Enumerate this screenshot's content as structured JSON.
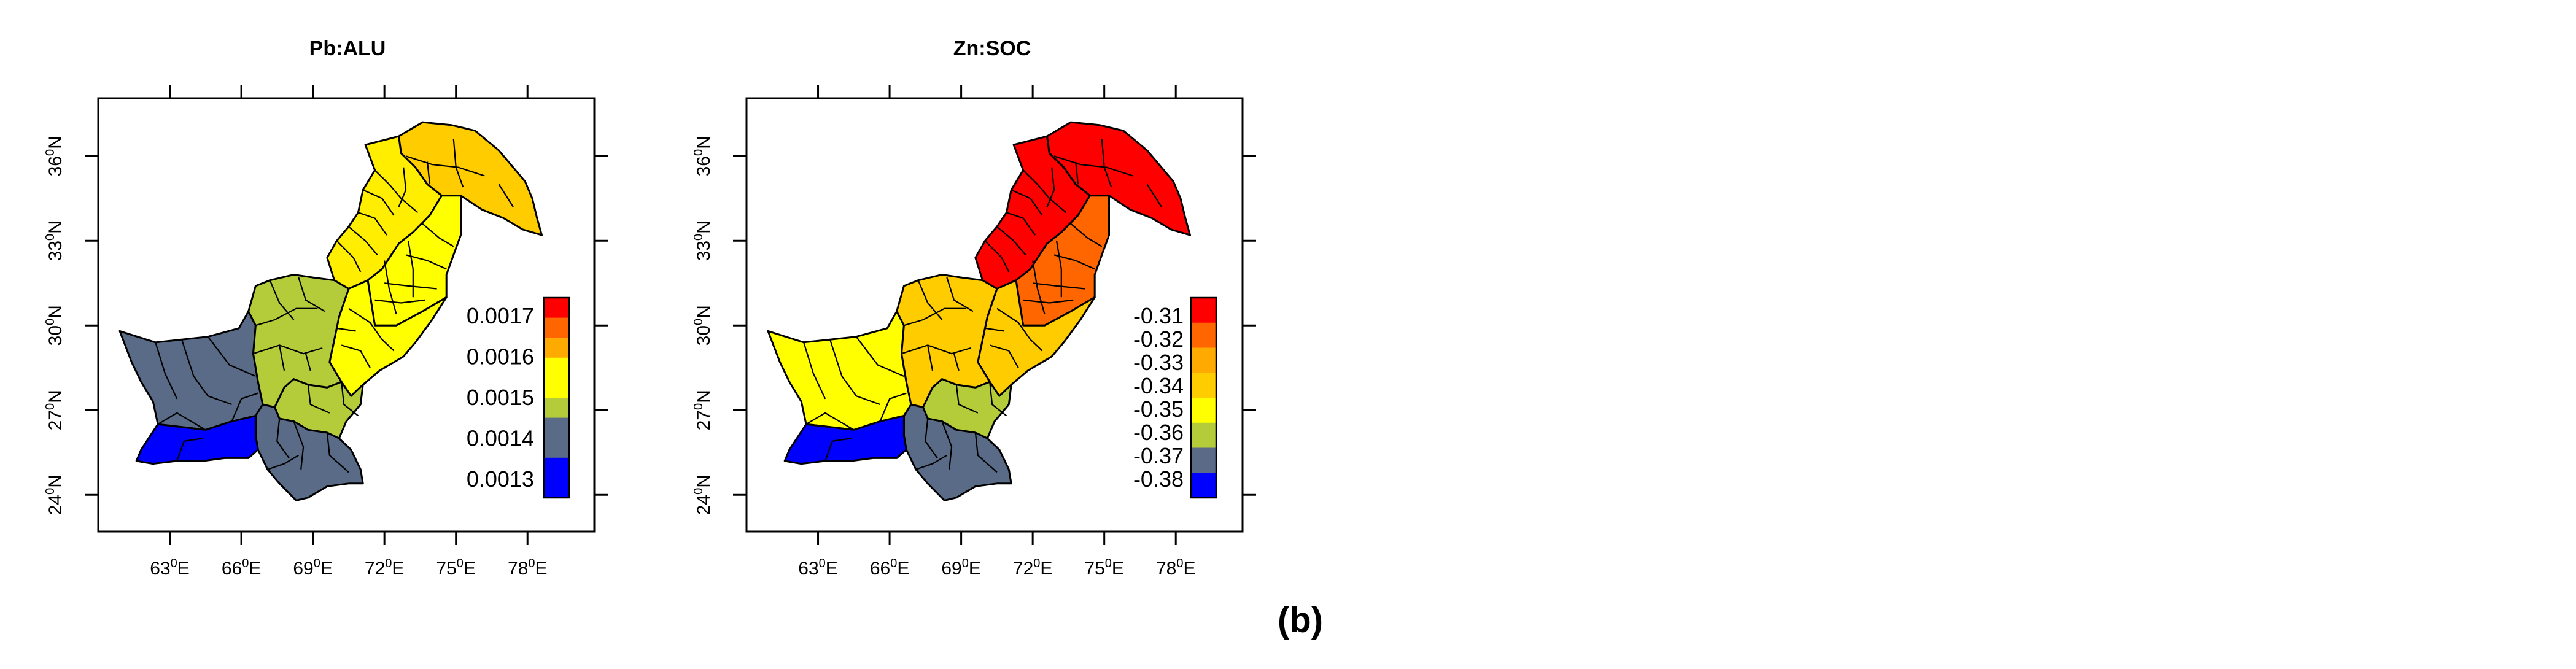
{
  "figure": {
    "caption": "(b)",
    "x_ticks": [
      {
        "deg": "63",
        "sup": "0",
        "dir": "E"
      },
      {
        "deg": "66",
        "sup": "0",
        "dir": "E"
      },
      {
        "deg": "69",
        "sup": "0",
        "dir": "E"
      },
      {
        "deg": "72",
        "sup": "0",
        "dir": "E"
      },
      {
        "deg": "75",
        "sup": "0",
        "dir": "E"
      },
      {
        "deg": "78",
        "sup": "0",
        "dir": "E"
      }
    ],
    "y_ticks": [
      {
        "deg": "24",
        "sup": "0",
        "dir": "N"
      },
      {
        "deg": "27",
        "sup": "0",
        "dir": "N"
      },
      {
        "deg": "30",
        "sup": "0",
        "dir": "N"
      },
      {
        "deg": "33",
        "sup": "0",
        "dir": "N"
      },
      {
        "deg": "36",
        "sup": "0",
        "dir": "N"
      }
    ]
  },
  "panels": [
    {
      "title": "Pb:ALU",
      "legend": {
        "labels": [
          "0.0017",
          "0.0016",
          "0.0015",
          "0.0014",
          "0.0013"
        ],
        "colors": [
          "#ff0000",
          "#ff6600",
          "#ffaa00",
          "#ffff00",
          "#ffff00",
          "#b5cc3a",
          "#5a6b87",
          "#5a6b87",
          "#0000ff",
          "#0000ff"
        ]
      },
      "region_colors": {
        "north": "#ffcc00",
        "kp": "#ffee00",
        "punjab_north": "#ffff00",
        "punjab_south": "#ffff00",
        "west_bal": "#5a6b87",
        "central_bal": "#b5cc3a",
        "sindh_north": "#b5cc3a",
        "sindh_south": "#5a6b87",
        "coast": "#0000ff"
      }
    },
    {
      "title": "Zn:SOC",
      "legend": {
        "labels": [
          "-0.31",
          "-0.32",
          "-0.33",
          "-0.34",
          "-0.35",
          "-0.36",
          "-0.37",
          "-0.38"
        ],
        "colors": [
          "#ff0000",
          "#ff6600",
          "#ffaa00",
          "#ffcc00",
          "#ffff00",
          "#b5cc3a",
          "#5a6b87",
          "#0000ff"
        ]
      },
      "region_colors": {
        "north": "#ff0000",
        "kp": "#ff0000",
        "punjab_north": "#ff6600",
        "punjab_south": "#ffcc00",
        "west_bal": "#ffff00",
        "central_bal": "#ffcc00",
        "sindh_north": "#b5cc3a",
        "sindh_south": "#5a6b87",
        "coast": "#0000ff"
      }
    }
  ]
}
